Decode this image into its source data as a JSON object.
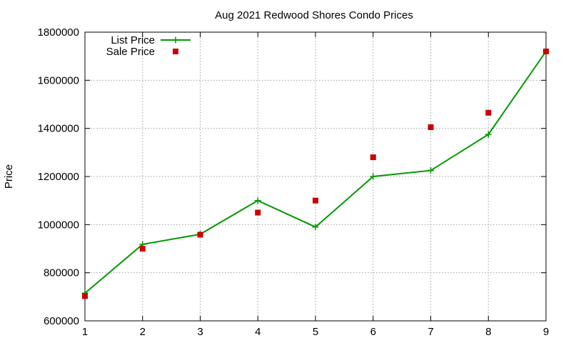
{
  "chart_data": {
    "type": "line",
    "title": "Aug 2021 Redwood Shores Condo Prices",
    "xlabel": "",
    "ylabel": "Price",
    "x": [
      1,
      2,
      3,
      4,
      5,
      6,
      7,
      8,
      9
    ],
    "xlim": [
      1,
      9
    ],
    "ylim": [
      600000,
      1800000
    ],
    "xticks": [
      "1",
      "2",
      "3",
      "4",
      "5",
      "6",
      "7",
      "8",
      "9"
    ],
    "yticks": [
      "600000",
      "800000",
      "1000000",
      "1200000",
      "1400000",
      "1600000",
      "1800000"
    ],
    "grid": true,
    "legend_position": "top-left",
    "series": [
      {
        "name": "List Price",
        "style": "line+cross",
        "color": "#009900",
        "values": [
          715000,
          918000,
          960000,
          1100000,
          990000,
          1200000,
          1225000,
          1375000,
          1720000
        ]
      },
      {
        "name": "Sale Price",
        "style": "square",
        "color": "#cc0000",
        "values": [
          703000,
          900000,
          958000,
          1050000,
          1100000,
          1280000,
          1405000,
          1465000,
          1720000
        ]
      }
    ]
  }
}
